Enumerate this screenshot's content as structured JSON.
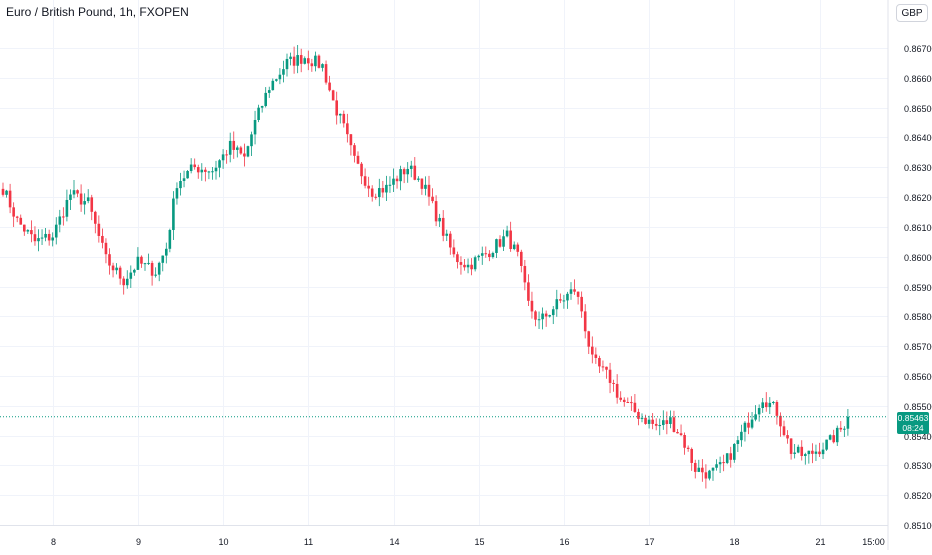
{
  "header": {
    "title": "Euro / British Pound, 1h, FXOPEN",
    "currency_button": "GBP"
  },
  "last_price": {
    "value": "0.85463",
    "countdown": "08:24"
  },
  "colors": {
    "up": "#089981",
    "down": "#f23645",
    "grid": "#f0f3fa",
    "axis_text": "#131722",
    "price_line": "#089981"
  },
  "chart_data": {
    "type": "candlestick",
    "title": "Euro / British Pound, 1h, FXOPEN",
    "ylim": [
      0.851,
      0.868
    ],
    "y_ticks": [
      "0.86700",
      "0.86600",
      "0.86500",
      "0.86400",
      "0.86300",
      "0.86200",
      "0.86100",
      "0.86000",
      "0.85900",
      "0.85800",
      "0.85700",
      "0.85600",
      "0.85500",
      "0.85400",
      "0.85300",
      "0.85200",
      "0.85100"
    ],
    "x_ticks": [
      {
        "label": "8",
        "index": 14
      },
      {
        "label": "9",
        "index": 38
      },
      {
        "label": "10",
        "index": 62
      },
      {
        "label": "11",
        "index": 86
      },
      {
        "label": "14",
        "index": 110
      },
      {
        "label": "15",
        "index": 134
      },
      {
        "label": "16",
        "index": 158
      },
      {
        "label": "17",
        "index": 182
      },
      {
        "label": "18",
        "index": 206
      },
      {
        "label": "21",
        "index": 230
      },
      {
        "label": "15:00",
        "index": 245
      }
    ],
    "grid": true,
    "keyframes": [
      [
        0,
        0.8623
      ],
      [
        4,
        0.8612
      ],
      [
        9,
        0.8605
      ],
      [
        14,
        0.8607
      ],
      [
        19,
        0.8621
      ],
      [
        24,
        0.8618
      ],
      [
        29,
        0.8599
      ],
      [
        34,
        0.8592
      ],
      [
        38,
        0.8598
      ],
      [
        43,
        0.8595
      ],
      [
        46,
        0.8603
      ],
      [
        49,
        0.8625
      ],
      [
        54,
        0.863
      ],
      [
        59,
        0.8629
      ],
      [
        64,
        0.8637
      ],
      [
        68,
        0.8633
      ],
      [
        71,
        0.8645
      ],
      [
        75,
        0.8657
      ],
      [
        80,
        0.8665
      ],
      [
        85,
        0.8667
      ],
      [
        90,
        0.8664
      ],
      [
        93,
        0.8652
      ],
      [
        96,
        0.8643
      ],
      [
        99,
        0.8632
      ],
      [
        104,
        0.8622
      ],
      [
        108,
        0.8623
      ],
      [
        114,
        0.863
      ],
      [
        118,
        0.8625
      ],
      [
        122,
        0.8614
      ],
      [
        127,
        0.86
      ],
      [
        131,
        0.8597
      ],
      [
        136,
        0.8601
      ],
      [
        142,
        0.8607
      ],
      [
        145,
        0.86
      ],
      [
        148,
        0.8584
      ],
      [
        151,
        0.8578
      ],
      [
        156,
        0.8584
      ],
      [
        161,
        0.8589
      ],
      [
        163,
        0.8582
      ],
      [
        166,
        0.8565
      ],
      [
        171,
        0.8559
      ],
      [
        174,
        0.8552
      ],
      [
        179,
        0.8547
      ],
      [
        184,
        0.8543
      ],
      [
        188,
        0.8545
      ],
      [
        191,
        0.854
      ],
      [
        195,
        0.8529
      ],
      [
        199,
        0.8527
      ],
      [
        203,
        0.853
      ],
      [
        207,
        0.8538
      ],
      [
        211,
        0.8547
      ],
      [
        214,
        0.8553
      ],
      [
        218,
        0.8548
      ],
      [
        222,
        0.8535
      ],
      [
        226,
        0.8533
      ],
      [
        229,
        0.8535
      ],
      [
        233,
        0.8538
      ],
      [
        236,
        0.8542
      ],
      [
        238,
        0.8546
      ]
    ],
    "last_value": 0.85463
  }
}
